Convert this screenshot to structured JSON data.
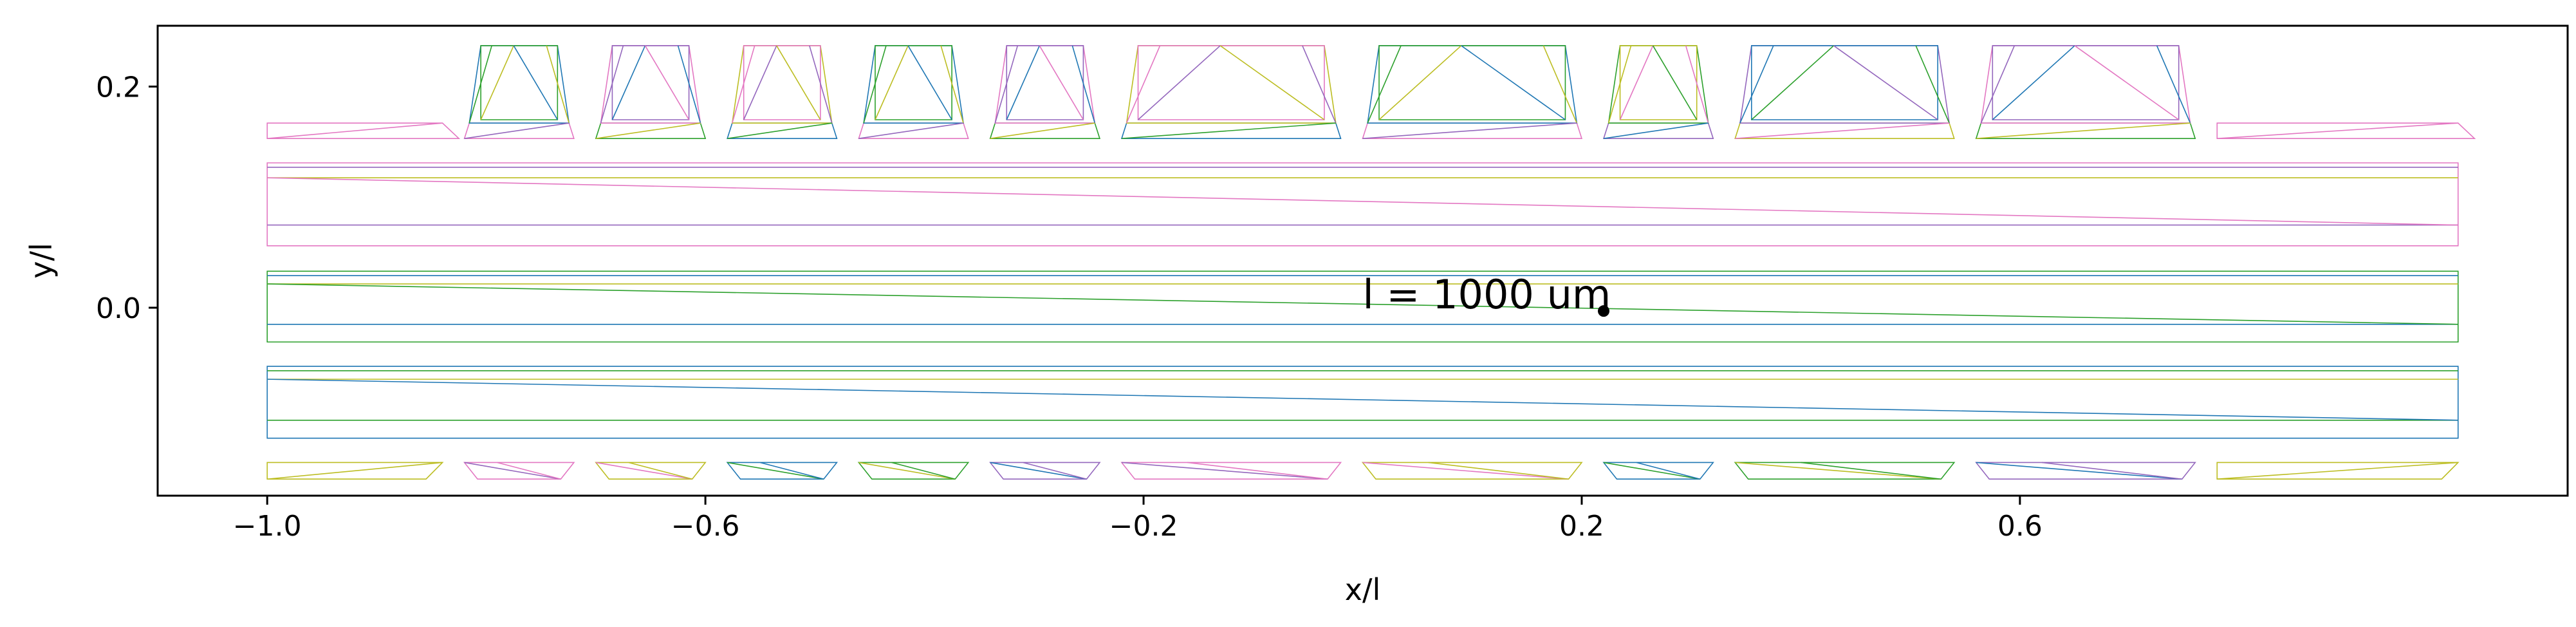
{
  "chart_data": {
    "type": "line",
    "title": "",
    "xlabel": "x/l",
    "ylabel": "y/l",
    "xlim": [
      -1.1,
      1.1
    ],
    "ylim": [
      -0.17,
      0.255
    ],
    "grid": false,
    "x_ticks": [
      -1.0,
      -0.6,
      -0.2,
      0.2,
      0.6
    ],
    "x_tick_labels": [
      "−1.0",
      "−0.6",
      "−0.2",
      "0.2",
      "0.6"
    ],
    "y_ticks": [
      0.0,
      0.2
    ],
    "y_tick_labels": [
      "0.0",
      "0.2"
    ],
    "annotation": {
      "text": "l = 1000 um",
      "point": [
        0.22,
        -0.003
      ]
    },
    "colors": [
      "#1f77b4",
      "#2ca02c",
      "#bcbd22",
      "#e377c2",
      "#9467bd"
    ],
    "bands": [
      {
        "x": [
          -1.0,
          1.0
        ],
        "y": [
          0.056,
          0.131
        ],
        "colors": [
          3,
          2,
          4,
          3
        ]
      },
      {
        "x": [
          -1.0,
          1.0
        ],
        "y": [
          -0.031,
          0.033
        ],
        "colors": [
          1,
          2,
          0,
          1
        ]
      },
      {
        "x": [
          -1.0,
          1.0
        ],
        "y": [
          -0.118,
          -0.053
        ],
        "colors": [
          0,
          2,
          1,
          0
        ]
      }
    ],
    "side_strips": [
      {
        "x": [
          -1.0,
          -0.84
        ],
        "y": [
          0.153,
          0.167
        ],
        "color": 3,
        "side": "top"
      },
      {
        "x": [
          0.78,
          1.0
        ],
        "y": [
          0.153,
          0.167
        ],
        "color": 3,
        "side": "top"
      },
      {
        "x": [
          -1.0,
          -0.84
        ],
        "y": [
          -0.155,
          -0.14
        ],
        "color": 2,
        "side": "bottom"
      },
      {
        "x": [
          0.78,
          1.0
        ],
        "y": [
          -0.155,
          -0.14
        ],
        "color": 2,
        "side": "bottom"
      }
    ],
    "top_pads": [
      {
        "x": [
          -0.82,
          -0.72
        ],
        "c": 0
      },
      {
        "x": [
          -0.7,
          -0.6
        ],
        "c": 3
      },
      {
        "x": [
          -0.58,
          -0.48
        ],
        "c": 2
      },
      {
        "x": [
          -0.46,
          -0.36
        ],
        "c": 0
      },
      {
        "x": [
          -0.34,
          -0.24
        ],
        "c": 3
      },
      {
        "x": [
          -0.22,
          -0.02
        ],
        "c": 2
      },
      {
        "x": [
          0.0,
          0.2
        ],
        "c": 0
      },
      {
        "x": [
          0.22,
          0.32
        ],
        "c": 1
      },
      {
        "x": [
          0.34,
          0.54
        ],
        "c": 4
      },
      {
        "x": [
          0.56,
          0.76
        ],
        "c": 3
      }
    ],
    "bottom_pads": [
      {
        "x": [
          -0.82,
          -0.72
        ],
        "c": 3
      },
      {
        "x": [
          -0.7,
          -0.6
        ],
        "c": 2
      },
      {
        "x": [
          -0.58,
          -0.48
        ],
        "c": 0
      },
      {
        "x": [
          -0.46,
          -0.36
        ],
        "c": 1
      },
      {
        "x": [
          -0.34,
          -0.24
        ],
        "c": 4
      },
      {
        "x": [
          -0.22,
          -0.02
        ],
        "c": 3
      },
      {
        "x": [
          0.0,
          0.2
        ],
        "c": 2
      },
      {
        "x": [
          0.22,
          0.32
        ],
        "c": 0
      },
      {
        "x": [
          0.34,
          0.54
        ],
        "c": 1
      },
      {
        "x": [
          0.56,
          0.76
        ],
        "c": 4
      }
    ],
    "pad_rows": {
      "top_base": [
        0.153,
        0.167
      ],
      "top_cap": [
        0.167,
        0.237
      ],
      "bottom": [
        -0.155,
        -0.14
      ]
    }
  }
}
